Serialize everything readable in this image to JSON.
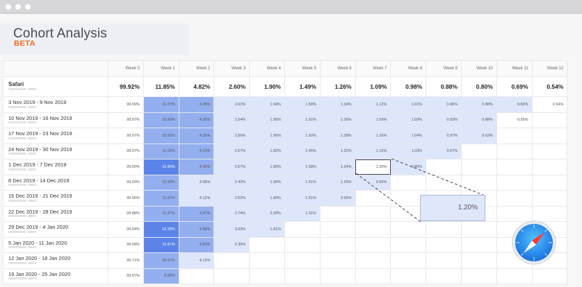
{
  "window": {
    "controls": [
      "close",
      "minimize",
      "zoom"
    ]
  },
  "header": {
    "title": "Cohort Analysis",
    "badge": "BETA"
  },
  "colors": {
    "cell_strong": "#5c84e8",
    "cell_mid": "#93aff0",
    "cell_light": "#dde6fb",
    "badge": "#f26a1b"
  },
  "columns": [
    "Week 0",
    "Week 1",
    "Week 2",
    "Week 3",
    "Week 4",
    "Week 5",
    "Week 6",
    "Week 7",
    "Week 8",
    "Week 9",
    "Week 10",
    "Week 11",
    "Week 12"
  ],
  "summary": {
    "label": "Safari",
    "sublabel": "users",
    "values": [
      "99.92%",
      "11.85%",
      "4.82%",
      "2.60%",
      "1.90%",
      "1.49%",
      "1.26%",
      "1.09%",
      "0.98%",
      "0.88%",
      "0.80%",
      "0.69%",
      "0.54%"
    ]
  },
  "rows": [
    {
      "label": "3 Nov 2019 - 9 Nov 2019",
      "sublabel": "users",
      "values": [
        "99.99%",
        "11.07%",
        "4.28%",
        "2.62%",
        "1.94%",
        "1.58%",
        "1.34%",
        "1.12%",
        "1.01%",
        "0.96%",
        "0.88%",
        "0.83%",
        "0.54%"
      ]
    },
    {
      "label": "10 Nov 2019 - 16 Nov 2019",
      "sublabel": "users",
      "values": [
        "99.97%",
        "10.99%",
        "4.32%",
        "2.54%",
        "1.90%",
        "1.51%",
        "1.26%",
        "1.09%",
        "1.03%",
        "0.93%",
        "0.88%",
        "0.56%"
      ]
    },
    {
      "label": "17 Nov 2019 - 23 Nov 2019",
      "sublabel": "users",
      "values": [
        "99.97%",
        "10.91%",
        "4.15%",
        "2.56%",
        "1.90%",
        "1.50%",
        "1.28%",
        "1.10%",
        "1.04%",
        "0.97%",
        "0.63%"
      ]
    },
    {
      "label": "24 Nov 2019 - 30 Nov 2019",
      "sublabel": "users",
      "values": [
        "99.97%",
        "11.03%",
        "4.23%",
        "2.57%",
        "1.82%",
        "1.45%",
        "1.32%",
        "1.16%",
        "1.03%",
        "0.67%"
      ]
    },
    {
      "label": "1 Dec 2019 - 7 Dec 2019",
      "sublabel": "users",
      "values": [
        "99.90%",
        "11.60%",
        "4.32%",
        "2.57%",
        "1.89%",
        "1.58%",
        "1.34%",
        "1.20%",
        "0.80%"
      ]
    },
    {
      "label": "8 Dec 2019 - 14 Dec 2019",
      "sublabel": "users",
      "values": [
        "99.93%",
        "10.93%",
        "3.98%",
        "2.42%",
        "1.90%",
        "1.51%",
        "1.29%",
        "0.83%"
      ]
    },
    {
      "label": "15 Dec 2019 - 21 Dec 2019",
      "sublabel": "users",
      "values": [
        "99.95%",
        "11.07%",
        "4.12%",
        "2.62%",
        "1.89%",
        "1.51%",
        "0.95%"
      ]
    },
    {
      "label": "22 Dec 2019 - 28 Dec 2019",
      "sublabel": "users",
      "values": [
        "99.88%",
        "11.37%",
        "4.47%",
        "2.74%",
        "2.09%",
        "1.31%"
      ]
    },
    {
      "label": "29 Dec 2019 - 4 Jan 2020",
      "sublabel": "users",
      "values": [
        "99.94%",
        "12.29%",
        "4.88%",
        "3.03%",
        "1.81%"
      ]
    },
    {
      "label": "5 Jan 2020 - 11 Jan 2020",
      "sublabel": "users",
      "values": [
        "99.98%",
        "11.67%",
        "4.69%",
        "2.35%"
      ]
    },
    {
      "label": "12 Jan 2020 - 18 Jan 2020",
      "sublabel": "users",
      "values": [
        "99.71%",
        "10.97%",
        "4.12%"
      ]
    },
    {
      "label": "19 Jan 2020 - 25 Jan 2020",
      "sublabel": "users",
      "values": [
        "99.97%",
        "9.96%"
      ]
    }
  ],
  "highlight": {
    "row": 4,
    "column": 7
  },
  "callout": {
    "value": "1.20%"
  },
  "badge_icon": "safari-compass-icon"
}
